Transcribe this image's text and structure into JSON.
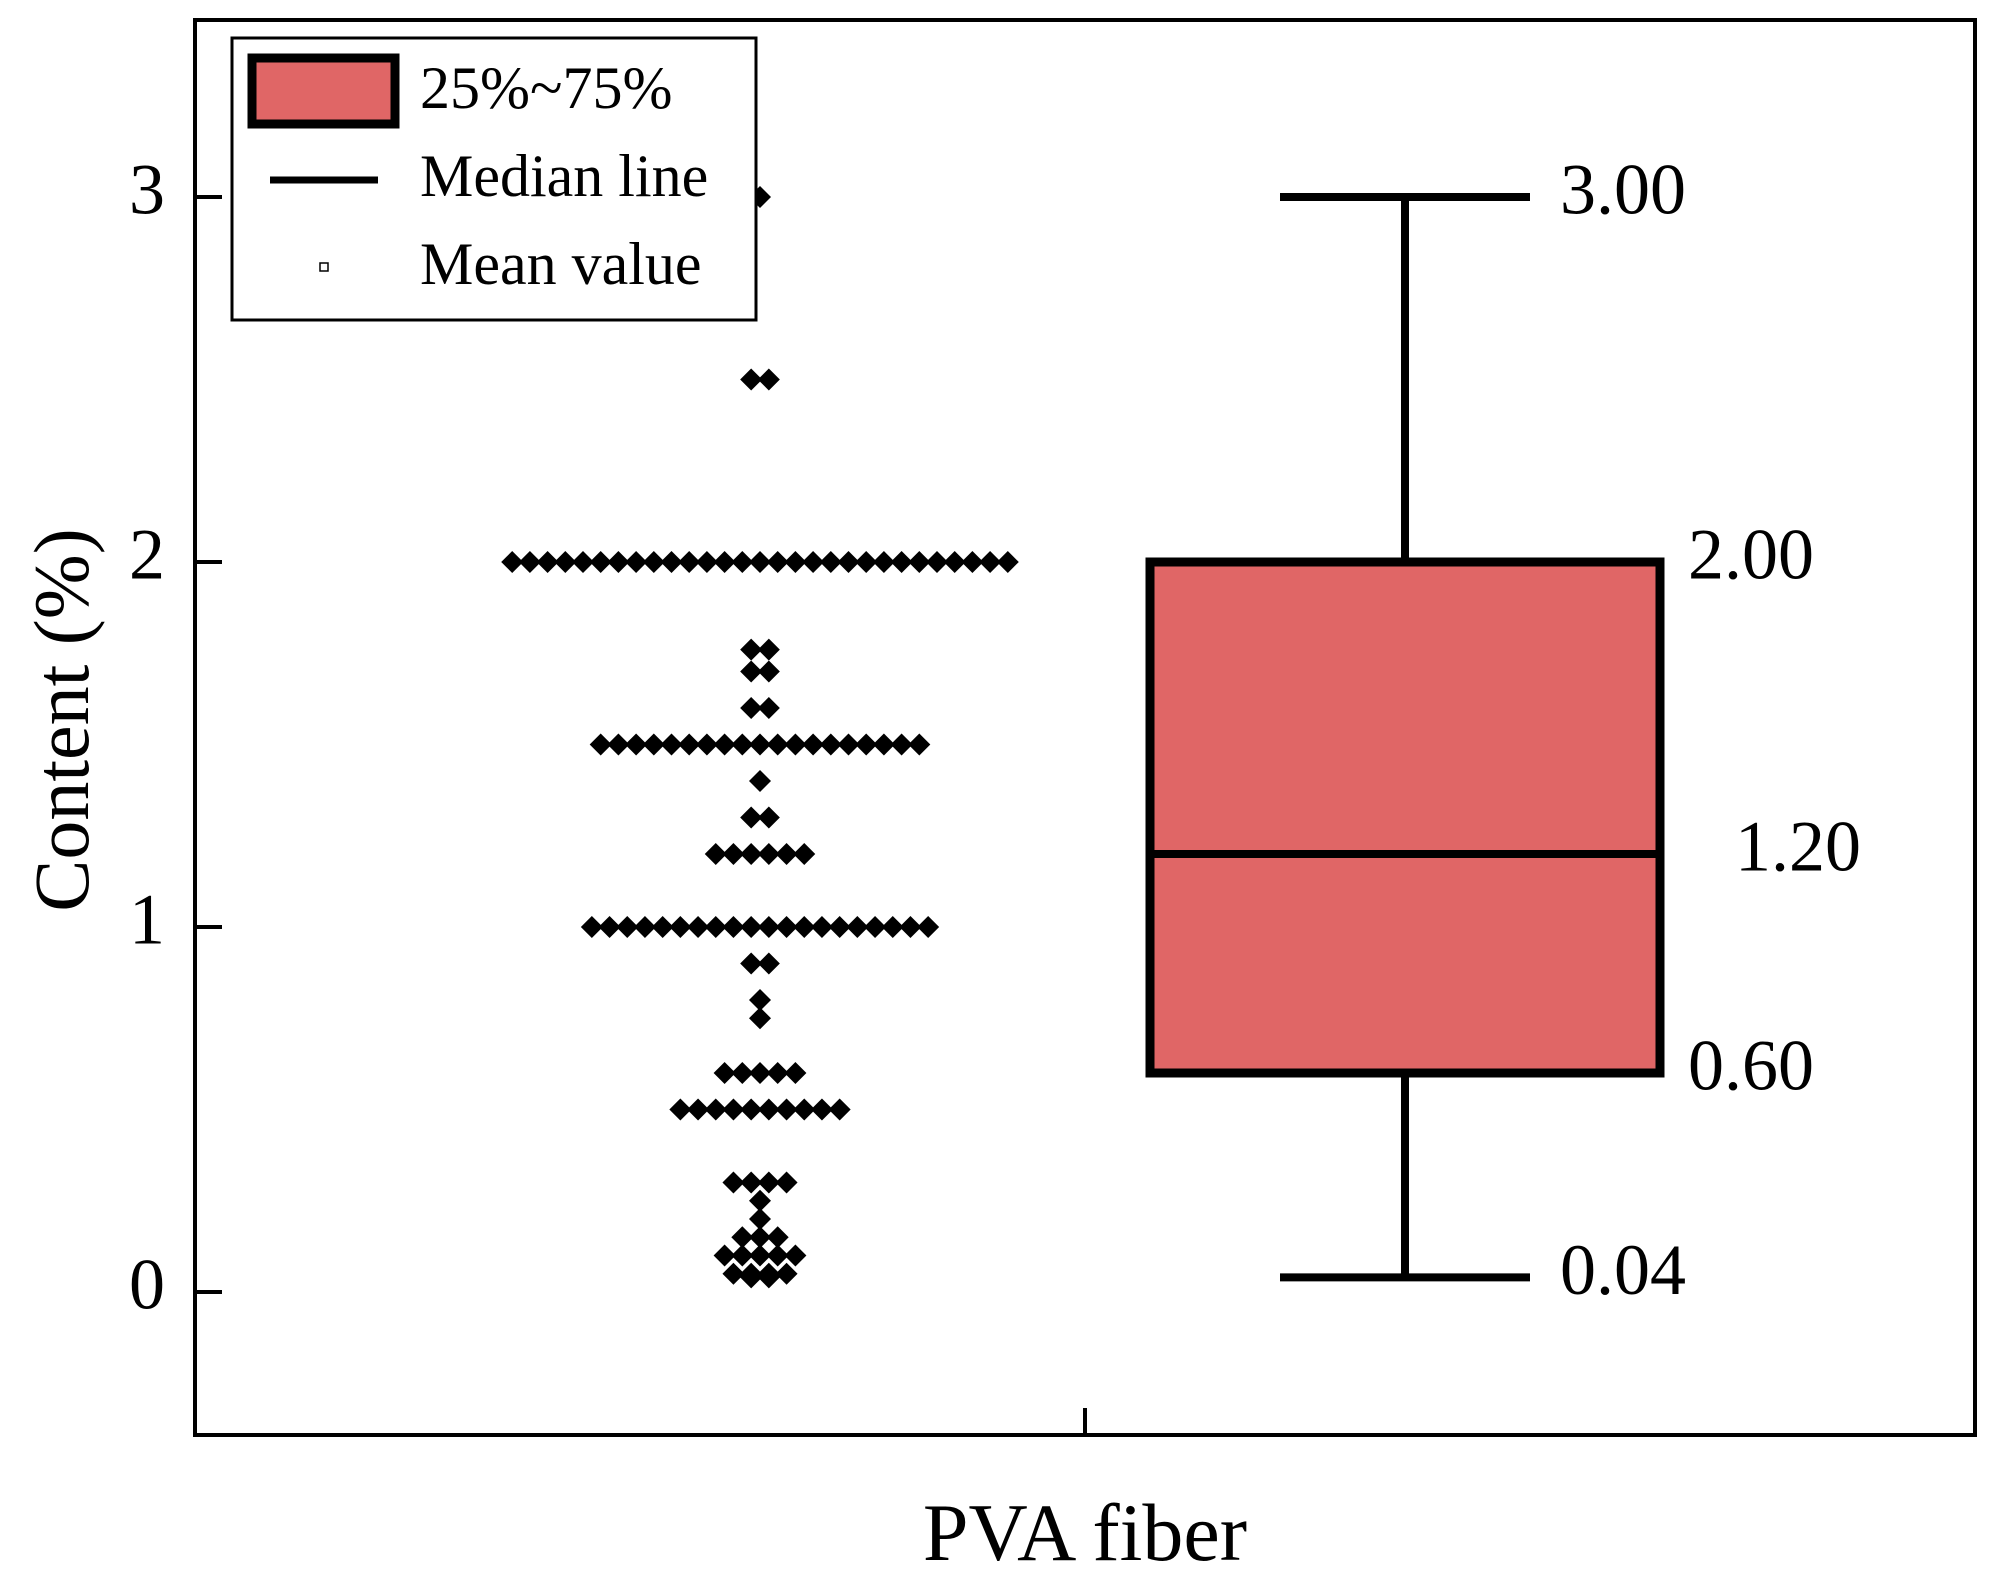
{
  "chart_data": {
    "type": "box",
    "xlabel": "PVA fiber",
    "ylabel": "Content (%)",
    "ylim": [
      -0.4,
      3.5
    ],
    "yticks": [
      0,
      1,
      2,
      3
    ],
    "ytick_labels": [
      "0",
      "1",
      "2",
      "3"
    ],
    "category": "PVA fiber",
    "box": {
      "min": 0.04,
      "q1": 0.6,
      "median": 1.2,
      "q3": 2.0,
      "max": 3.0,
      "fill": "#e06666",
      "stroke": "#000000"
    },
    "value_labels": {
      "max": "3.00",
      "q3": "2.00",
      "median": "1.20",
      "q1": "0.60",
      "min": "0.04"
    },
    "legend": {
      "position": "top-left",
      "entries": [
        {
          "label": "25%~75%",
          "kind": "box"
        },
        {
          "label": "Median line",
          "kind": "line"
        },
        {
          "label": "Mean value",
          "kind": "square-marker"
        }
      ]
    },
    "points": {
      "marker": "diamond",
      "color": "#000000",
      "rows": [
        {
          "y": 3.0,
          "count": 1
        },
        {
          "y": 2.5,
          "count": 2
        },
        {
          "y": 2.0,
          "count": 29
        },
        {
          "y": 1.76,
          "count": 2
        },
        {
          "y": 1.7,
          "count": 2
        },
        {
          "y": 1.6,
          "count": 2
        },
        {
          "y": 1.5,
          "count": 19
        },
        {
          "y": 1.4,
          "count": 1
        },
        {
          "y": 1.3,
          "count": 2
        },
        {
          "y": 1.2,
          "count": 6
        },
        {
          "y": 1.0,
          "count": 20
        },
        {
          "y": 0.9,
          "count": 2
        },
        {
          "y": 0.8,
          "count": 1
        },
        {
          "y": 0.75,
          "count": 1
        },
        {
          "y": 0.6,
          "count": 5
        },
        {
          "y": 0.5,
          "count": 10
        },
        {
          "y": 0.3,
          "count": 4
        },
        {
          "y": 0.25,
          "count": 1
        },
        {
          "y": 0.2,
          "count": 1
        },
        {
          "y": 0.15,
          "count": 3
        },
        {
          "y": 0.1,
          "count": 5
        },
        {
          "y": 0.05,
          "count": 4
        },
        {
          "y": 0.04,
          "count": 2
        }
      ]
    }
  }
}
